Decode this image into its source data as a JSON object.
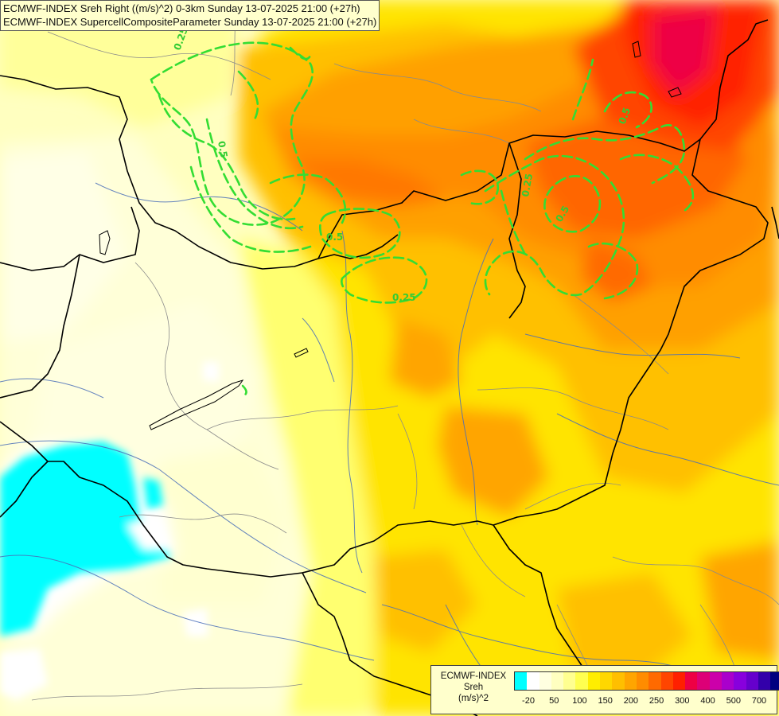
{
  "title_lines": [
    "ECMWF-INDEX Sreh Right ((m/s)^2) 0-3km Sunday 13-07-2025 21:00 (+27h)",
    "ECMWF-INDEX SupercellCompositeParameter Sunday 13-07-2025 21:00 (+27h)"
  ],
  "legend": {
    "line1": "ECMWF-INDEX",
    "line2": "Sreh",
    "line3": "(m/s)^2",
    "colors": [
      "#00ffff",
      "#ffffff",
      "#ffffe0",
      "#ffffc0",
      "#ffff90",
      "#ffff50",
      "#ffee00",
      "#ffd700",
      "#ffbf00",
      "#ffa500",
      "#ff8c00",
      "#ff6a00",
      "#ff4500",
      "#ff2000",
      "#ee0044",
      "#dd0077",
      "#cc00aa",
      "#aa00cc",
      "#8800dd",
      "#6600cc",
      "#3300aa",
      "#000080"
    ],
    "tick_labels": [
      "-20",
      "50",
      "100",
      "150",
      "200",
      "250",
      "300",
      "400",
      "500",
      "700"
    ]
  },
  "contour_labels": [
    "0.25",
    "0.5",
    "0.5",
    "0.5",
    "0.25",
    "0.5",
    "0.25"
  ]
}
